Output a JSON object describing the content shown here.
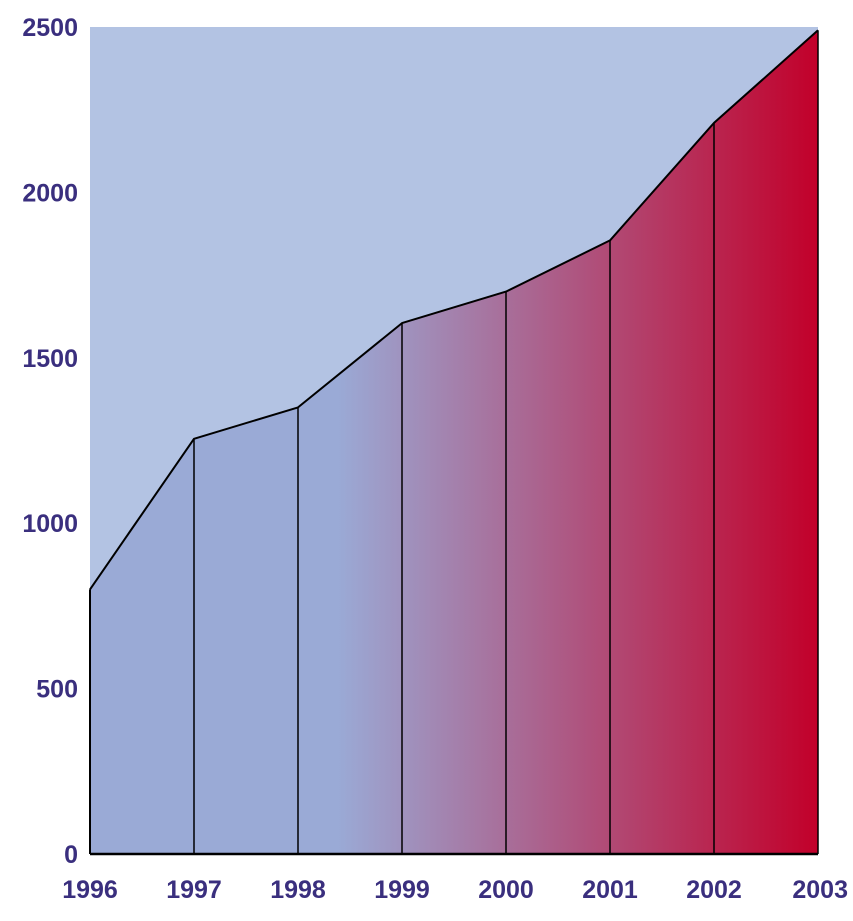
{
  "chart_data": {
    "type": "area",
    "x": [
      "1996",
      "1997",
      "1998",
      "1999",
      "2000",
      "2001",
      "2002",
      "2003"
    ],
    "values": [
      800,
      1255,
      1350,
      1605,
      1700,
      1855,
      2210,
      2490
    ],
    "ylim": [
      0,
      2500
    ],
    "yticks": [
      0,
      500,
      1000,
      1500,
      2000,
      2500
    ],
    "title": "",
    "xlabel": "",
    "ylabel": "",
    "grid": false,
    "legend": "none",
    "gradient": "left-to-right blue-to-red under the line"
  },
  "colors": {
    "plot_background": "#b3c3e3",
    "fill_start": "#9aaad6",
    "fill_mid": "#9aaad6",
    "fill_end": "#c2002a",
    "line": "#000000",
    "axis": "#000000",
    "tick_label": "#3a2f7e",
    "page_background": "#ffffff"
  }
}
